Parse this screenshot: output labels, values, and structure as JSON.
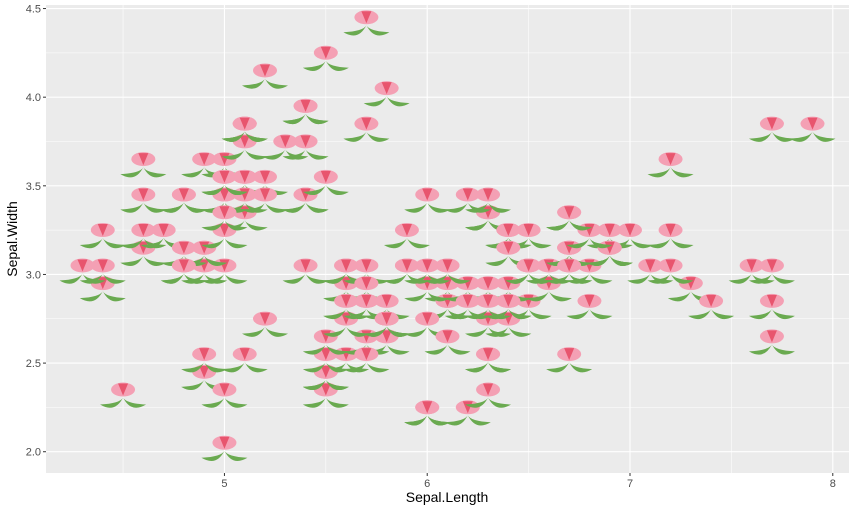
{
  "chart_data": {
    "type": "scatter",
    "title": "",
    "xlabel": "Sepal.Length",
    "ylabel": "Sepal.Width",
    "xlim": [
      4.12,
      8.08
    ],
    "ylim": [
      1.88,
      4.52
    ],
    "x_ticks": [
      5,
      6,
      7,
      8
    ],
    "x_tick_labels": [
      "5",
      "6",
      "7",
      "8"
    ],
    "y_ticks": [
      2.0,
      2.5,
      3.0,
      3.5,
      4.0,
      4.5
    ],
    "y_tick_labels": [
      "2.0",
      "2.5",
      "3.0",
      "3.5",
      "4.0",
      "4.5"
    ],
    "marker": "flower-icon",
    "grid": true,
    "colors": {
      "panel": "#ebebeb",
      "grid_major": "#ffffff",
      "petal": "#f4a0b4",
      "petal_center": "#e8556e",
      "leaf": "#6aaa50"
    },
    "points": [
      {
        "x": 5.1,
        "y": 3.5
      },
      {
        "x": 4.9,
        "y": 3.0
      },
      {
        "x": 4.7,
        "y": 3.2
      },
      {
        "x": 4.6,
        "y": 3.1
      },
      {
        "x": 5.0,
        "y": 3.6
      },
      {
        "x": 5.4,
        "y": 3.9
      },
      {
        "x": 4.6,
        "y": 3.4
      },
      {
        "x": 5.0,
        "y": 3.4
      },
      {
        "x": 4.4,
        "y": 2.9
      },
      {
        "x": 4.9,
        "y": 3.1
      },
      {
        "x": 5.4,
        "y": 3.7
      },
      {
        "x": 4.8,
        "y": 3.4
      },
      {
        "x": 4.8,
        "y": 3.0
      },
      {
        "x": 4.3,
        "y": 3.0
      },
      {
        "x": 5.8,
        "y": 4.0
      },
      {
        "x": 5.7,
        "y": 4.4
      },
      {
        "x": 5.4,
        "y": 3.9
      },
      {
        "x": 5.1,
        "y": 3.5
      },
      {
        "x": 5.7,
        "y": 3.8
      },
      {
        "x": 5.1,
        "y": 3.8
      },
      {
        "x": 5.4,
        "y": 3.4
      },
      {
        "x": 5.1,
        "y": 3.7
      },
      {
        "x": 4.6,
        "y": 3.6
      },
      {
        "x": 5.1,
        "y": 3.3
      },
      {
        "x": 4.8,
        "y": 3.4
      },
      {
        "x": 5.0,
        "y": 3.0
      },
      {
        "x": 5.0,
        "y": 3.4
      },
      {
        "x": 5.2,
        "y": 3.5
      },
      {
        "x": 5.2,
        "y": 3.4
      },
      {
        "x": 4.7,
        "y": 3.2
      },
      {
        "x": 4.8,
        "y": 3.1
      },
      {
        "x": 5.4,
        "y": 3.4
      },
      {
        "x": 5.2,
        "y": 4.1
      },
      {
        "x": 5.5,
        "y": 4.2
      },
      {
        "x": 4.9,
        "y": 3.1
      },
      {
        "x": 5.0,
        "y": 3.2
      },
      {
        "x": 5.5,
        "y": 3.5
      },
      {
        "x": 4.9,
        "y": 3.6
      },
      {
        "x": 4.4,
        "y": 3.0
      },
      {
        "x": 5.1,
        "y": 3.4
      },
      {
        "x": 5.0,
        "y": 3.5
      },
      {
        "x": 4.5,
        "y": 2.3
      },
      {
        "x": 4.4,
        "y": 3.2
      },
      {
        "x": 5.0,
        "y": 3.5
      },
      {
        "x": 5.1,
        "y": 3.8
      },
      {
        "x": 4.8,
        "y": 3.0
      },
      {
        "x": 5.1,
        "y": 3.8
      },
      {
        "x": 4.6,
        "y": 3.2
      },
      {
        "x": 5.3,
        "y": 3.7
      },
      {
        "x": 5.0,
        "y": 3.3
      },
      {
        "x": 7.0,
        "y": 3.2
      },
      {
        "x": 6.4,
        "y": 3.2
      },
      {
        "x": 6.9,
        "y": 3.1
      },
      {
        "x": 5.5,
        "y": 2.3
      },
      {
        "x": 6.5,
        "y": 2.8
      },
      {
        "x": 5.7,
        "y": 2.8
      },
      {
        "x": 6.3,
        "y": 3.3
      },
      {
        "x": 4.9,
        "y": 2.4
      },
      {
        "x": 6.6,
        "y": 2.9
      },
      {
        "x": 5.2,
        "y": 2.7
      },
      {
        "x": 5.0,
        "y": 2.0
      },
      {
        "x": 5.9,
        "y": 3.0
      },
      {
        "x": 6.0,
        "y": 2.2
      },
      {
        "x": 6.1,
        "y": 2.9
      },
      {
        "x": 5.6,
        "y": 2.9
      },
      {
        "x": 6.7,
        "y": 3.1
      },
      {
        "x": 5.6,
        "y": 3.0
      },
      {
        "x": 5.8,
        "y": 2.7
      },
      {
        "x": 6.2,
        "y": 2.2
      },
      {
        "x": 5.6,
        "y": 2.5
      },
      {
        "x": 5.9,
        "y": 3.2
      },
      {
        "x": 6.1,
        "y": 2.8
      },
      {
        "x": 6.3,
        "y": 2.5
      },
      {
        "x": 6.1,
        "y": 2.8
      },
      {
        "x": 6.4,
        "y": 2.9
      },
      {
        "x": 6.6,
        "y": 3.0
      },
      {
        "x": 6.8,
        "y": 2.8
      },
      {
        "x": 6.7,
        "y": 3.0
      },
      {
        "x": 6.0,
        "y": 2.9
      },
      {
        "x": 5.7,
        "y": 2.6
      },
      {
        "x": 5.5,
        "y": 2.4
      },
      {
        "x": 5.5,
        "y": 2.4
      },
      {
        "x": 5.8,
        "y": 2.7
      },
      {
        "x": 6.0,
        "y": 2.7
      },
      {
        "x": 5.4,
        "y": 3.0
      },
      {
        "x": 6.0,
        "y": 3.4
      },
      {
        "x": 6.7,
        "y": 3.1
      },
      {
        "x": 6.3,
        "y": 2.3
      },
      {
        "x": 5.6,
        "y": 3.0
      },
      {
        "x": 5.5,
        "y": 2.5
      },
      {
        "x": 5.5,
        "y": 2.6
      },
      {
        "x": 6.1,
        "y": 3.0
      },
      {
        "x": 5.8,
        "y": 2.6
      },
      {
        "x": 5.0,
        "y": 2.3
      },
      {
        "x": 5.6,
        "y": 2.7
      },
      {
        "x": 5.7,
        "y": 3.0
      },
      {
        "x": 5.7,
        "y": 2.9
      },
      {
        "x": 6.2,
        "y": 2.9
      },
      {
        "x": 5.1,
        "y": 2.5
      },
      {
        "x": 5.7,
        "y": 2.8
      },
      {
        "x": 6.3,
        "y": 3.3
      },
      {
        "x": 5.8,
        "y": 2.7
      },
      {
        "x": 7.1,
        "y": 3.0
      },
      {
        "x": 6.3,
        "y": 2.9
      },
      {
        "x": 6.5,
        "y": 3.0
      },
      {
        "x": 7.6,
        "y": 3.0
      },
      {
        "x": 4.9,
        "y": 2.5
      },
      {
        "x": 7.3,
        "y": 2.9
      },
      {
        "x": 6.7,
        "y": 2.5
      },
      {
        "x": 7.2,
        "y": 3.6
      },
      {
        "x": 6.5,
        "y": 3.2
      },
      {
        "x": 6.4,
        "y": 2.7
      },
      {
        "x": 6.8,
        "y": 3.0
      },
      {
        "x": 5.7,
        "y": 2.5
      },
      {
        "x": 5.8,
        "y": 2.8
      },
      {
        "x": 6.4,
        "y": 3.2
      },
      {
        "x": 6.5,
        "y": 3.0
      },
      {
        "x": 7.7,
        "y": 3.8
      },
      {
        "x": 7.7,
        "y": 2.6
      },
      {
        "x": 6.0,
        "y": 2.2
      },
      {
        "x": 6.9,
        "y": 3.2
      },
      {
        "x": 5.6,
        "y": 2.8
      },
      {
        "x": 7.7,
        "y": 2.8
      },
      {
        "x": 6.3,
        "y": 2.7
      },
      {
        "x": 6.7,
        "y": 3.3
      },
      {
        "x": 7.2,
        "y": 3.2
      },
      {
        "x": 6.2,
        "y": 2.8
      },
      {
        "x": 6.1,
        "y": 3.0
      },
      {
        "x": 6.4,
        "y": 2.8
      },
      {
        "x": 7.2,
        "y": 3.0
      },
      {
        "x": 7.4,
        "y": 2.8
      },
      {
        "x": 7.9,
        "y": 3.8
      },
      {
        "x": 6.4,
        "y": 2.8
      },
      {
        "x": 6.3,
        "y": 2.8
      },
      {
        "x": 6.1,
        "y": 2.6
      },
      {
        "x": 7.7,
        "y": 3.0
      },
      {
        "x": 6.3,
        "y": 3.4
      },
      {
        "x": 6.4,
        "y": 3.1
      },
      {
        "x": 6.0,
        "y": 3.0
      },
      {
        "x": 6.9,
        "y": 3.1
      },
      {
        "x": 6.7,
        "y": 3.1
      },
      {
        "x": 6.9,
        "y": 3.1
      },
      {
        "x": 5.8,
        "y": 2.7
      },
      {
        "x": 6.8,
        "y": 3.2
      },
      {
        "x": 6.7,
        "y": 3.3
      },
      {
        "x": 6.7,
        "y": 3.0
      },
      {
        "x": 6.3,
        "y": 2.5
      },
      {
        "x": 6.5,
        "y": 3.0
      },
      {
        "x": 6.2,
        "y": 3.4
      },
      {
        "x": 5.9,
        "y": 3.0
      }
    ]
  }
}
